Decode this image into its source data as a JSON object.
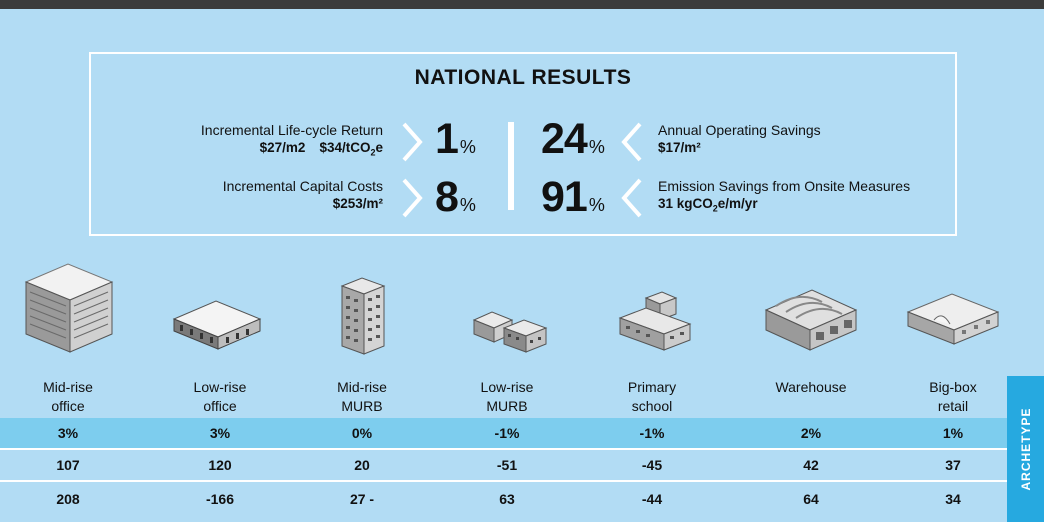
{
  "title": "NATIONAL RESULTS",
  "metrics": {
    "lifecycle_return": {
      "label": "Incremental Life-cycle Return",
      "sub_a": "$27/m2",
      "sub_b": "$34/tCO",
      "sub_b_subscript": "2",
      "sub_b_tail": "e",
      "value": "1",
      "unit": "%"
    },
    "capital_costs": {
      "label": "Incremental Capital Costs",
      "sub": "$253/m²",
      "value": "8",
      "unit": "%"
    },
    "operating_savings": {
      "label": "Annual Operating Savings",
      "sub": "$17/m²",
      "value": "24",
      "unit": "%"
    },
    "emission_savings": {
      "label": "Emission Savings from Onsite Measures",
      "sub_a": "31 kgCO",
      "sub_subscript": "2",
      "sub_b": "e/m/yr",
      "value": "91",
      "unit": "%"
    }
  },
  "archetypes": [
    {
      "line1": "Mid-rise",
      "line2": "office",
      "icon": "mid-rise-office-icon"
    },
    {
      "line1": "Low-rise",
      "line2": "office",
      "icon": "low-rise-office-icon"
    },
    {
      "line1": "Mid-rise",
      "line2": "MURB",
      "icon": "mid-rise-murb-icon"
    },
    {
      "line1": "Low-rise",
      "line2": "MURB",
      "icon": "low-rise-murb-icon"
    },
    {
      "line1": "Primary",
      "line2": "school",
      "icon": "primary-school-icon"
    },
    {
      "line1": "Warehouse",
      "line2": "",
      "icon": "warehouse-icon"
    },
    {
      "line1": "Big-box",
      "line2": "retail",
      "icon": "big-box-retail-icon"
    }
  ],
  "table_rows": [
    [
      "3%",
      "3%",
      "0%",
      "-1%",
      "-1%",
      "2%",
      "1%"
    ],
    [
      "107",
      "120",
      "20",
      "-51",
      "-45",
      "42",
      "37"
    ],
    [
      "208",
      "-166",
      "27 -",
      "63",
      "-44",
      "64",
      "34"
    ]
  ],
  "side_tab": "ARCHETYPE",
  "colors": {
    "background": "#b2dcf4",
    "highlight_row": "#7dcdee",
    "side_tab": "#26a9e0",
    "top_bar": "#3b3b3b"
  }
}
